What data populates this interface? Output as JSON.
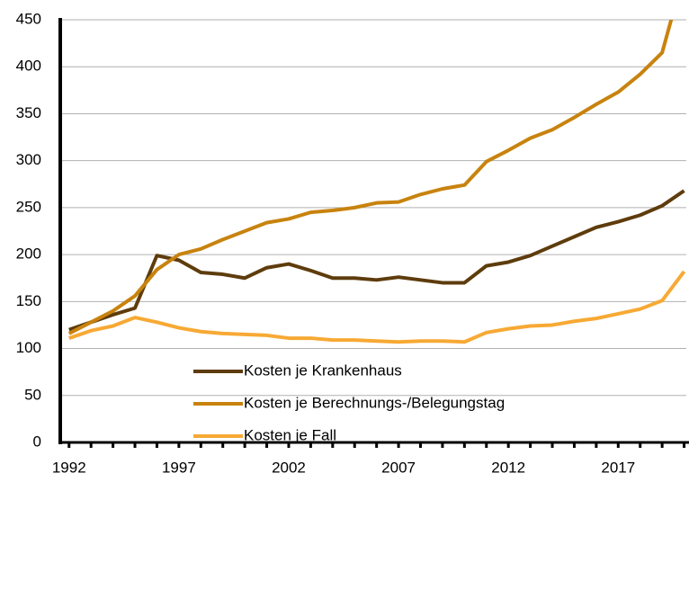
{
  "chart_data": {
    "type": "line",
    "x": [
      1992,
      1993,
      1994,
      1995,
      1996,
      1997,
      1998,
      1999,
      2000,
      2001,
      2002,
      2003,
      2004,
      2005,
      2006,
      2007,
      2008,
      2009,
      2010,
      2011,
      2012,
      2013,
      2014,
      2015,
      2016,
      2017,
      2018,
      2019,
      2020
    ],
    "series": [
      {
        "name": "Kosten je Krankenhaus",
        "color": "#5e3c0c",
        "values": [
          120,
          128,
          136,
          143,
          199,
          194,
          181,
          179,
          175,
          186,
          190,
          183,
          175,
          175,
          173,
          176,
          173,
          170,
          170,
          188,
          192,
          199,
          209,
          219,
          229,
          235,
          242,
          252,
          268
        ]
      },
      {
        "name": "Kosten je Berechnungs-/Belegungstag",
        "color": "#c8830e",
        "values": [
          116,
          128,
          140,
          156,
          184,
          200,
          206,
          216,
          225,
          234,
          238,
          245,
          247,
          250,
          255,
          256,
          264,
          270,
          274,
          299,
          311,
          324,
          333,
          346,
          360,
          373,
          392,
          415,
          500
        ]
      },
      {
        "name": "Kosten je Fall",
        "color": "#f7a934",
        "values": [
          111,
          119,
          124,
          133,
          128,
          122,
          118,
          116,
          115,
          114,
          111,
          111,
          109,
          109,
          108,
          107,
          108,
          108,
          107,
          117,
          121,
          124,
          125,
          129,
          132,
          137,
          142,
          151,
          182
        ]
      }
    ],
    "xlim": [
      1991.6,
      2020.1
    ],
    "xticks": [
      1992,
      1997,
      2002,
      2007,
      2012,
      2017
    ],
    "ylim": [
      0,
      450
    ],
    "yticks": [
      0,
      50,
      100,
      150,
      200,
      250,
      300,
      350,
      400,
      450
    ],
    "grid": true
  }
}
